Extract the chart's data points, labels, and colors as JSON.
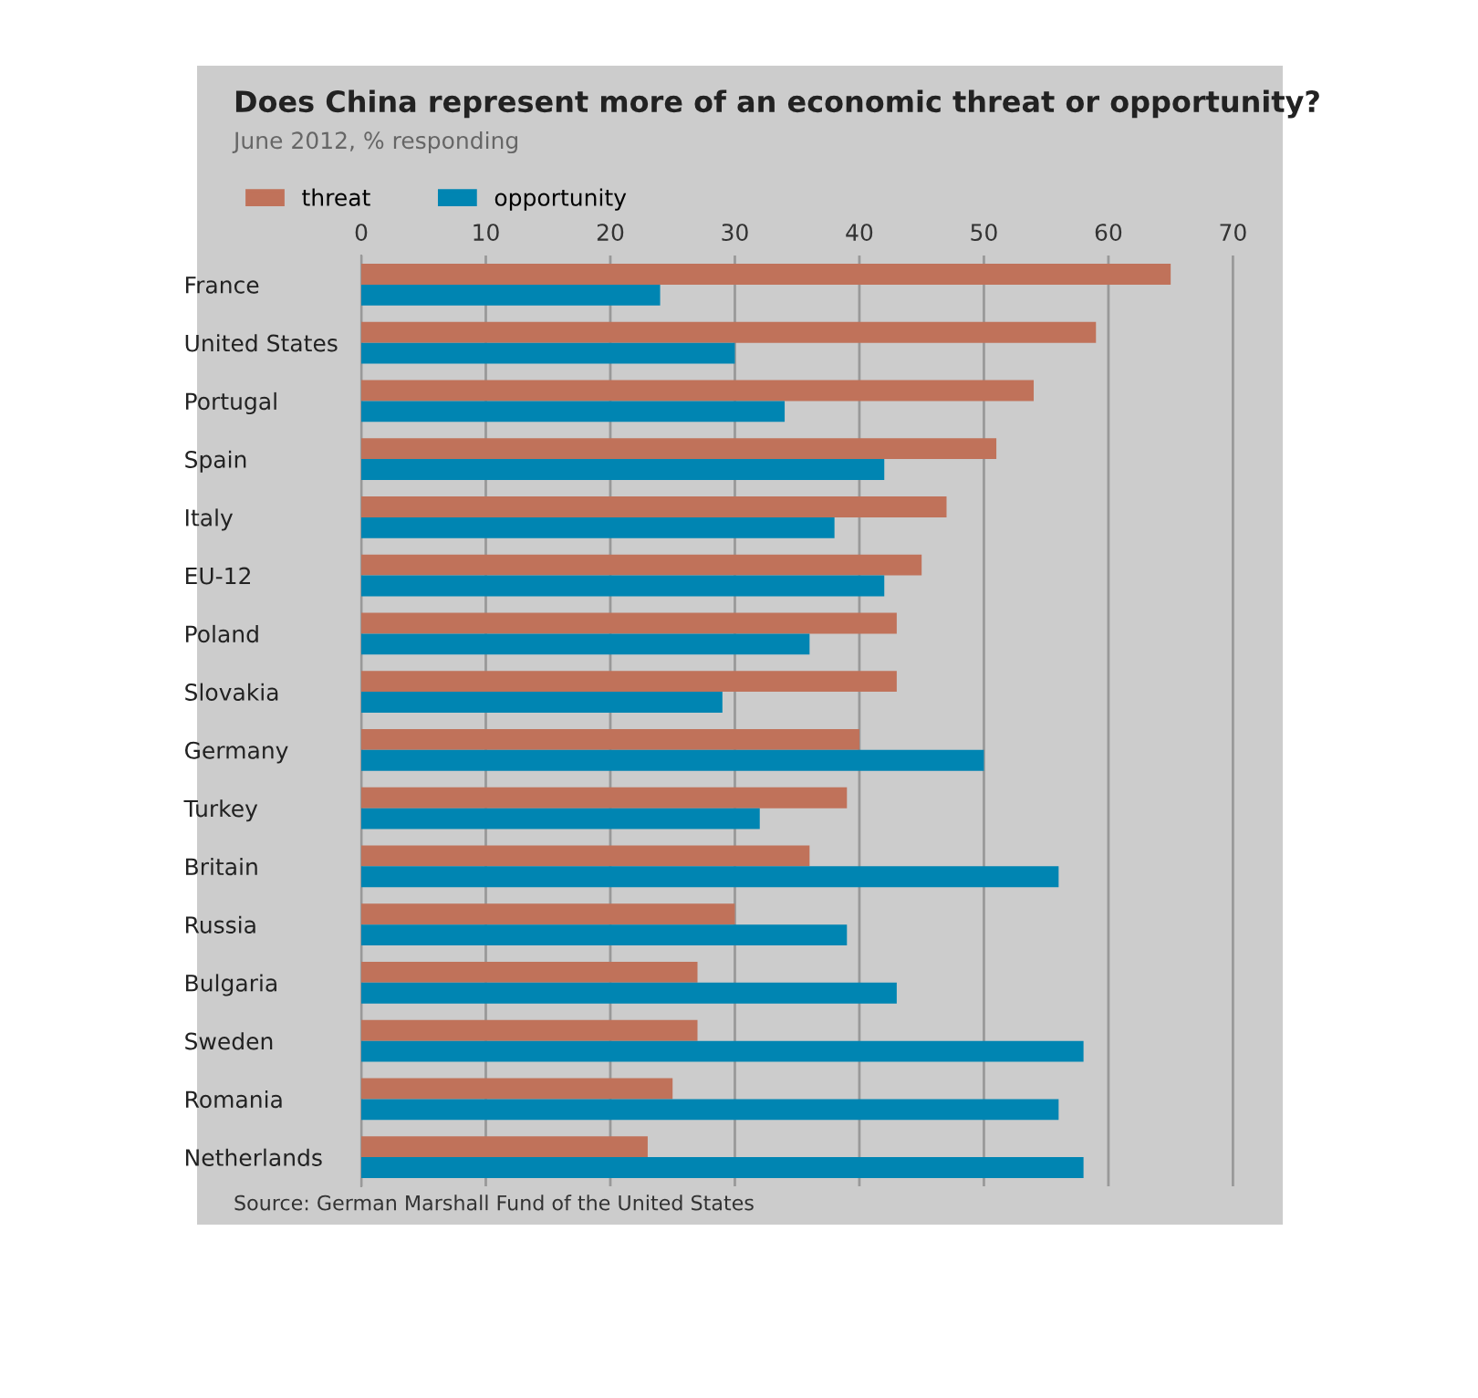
{
  "chart_data": {
    "type": "bar",
    "orientation": "horizontal",
    "title": "Does China represent more of an economic threat or opportunity?",
    "subtitle": "June 2012, % responding",
    "categories": [
      "France",
      "United States",
      "Portugal",
      "Spain",
      "Italy",
      "EU-12",
      "Poland",
      "Slovakia",
      "Germany",
      "Turkey",
      "Britain",
      "Russia",
      "Bulgaria",
      "Sweden",
      "Romania",
      "Netherlands"
    ],
    "series": [
      {
        "name": "threat",
        "color": "#c0725a",
        "values": [
          65,
          59,
          54,
          51,
          47,
          45,
          43,
          43,
          40,
          39,
          36,
          30,
          27,
          27,
          25,
          23
        ]
      },
      {
        "name": "opportunity",
        "color": "#0085b2",
        "values": [
          24,
          30,
          34,
          42,
          38,
          42,
          36,
          29,
          50,
          32,
          56,
          39,
          43,
          58,
          56,
          58
        ]
      }
    ],
    "xlim": [
      0,
      74
    ],
    "xticks": [
      0,
      10,
      20,
      30,
      40,
      50,
      60,
      70
    ],
    "grid": "x",
    "legend": "top left",
    "annotations": [
      "Source: German Marshall Fund of the United States"
    ]
  }
}
